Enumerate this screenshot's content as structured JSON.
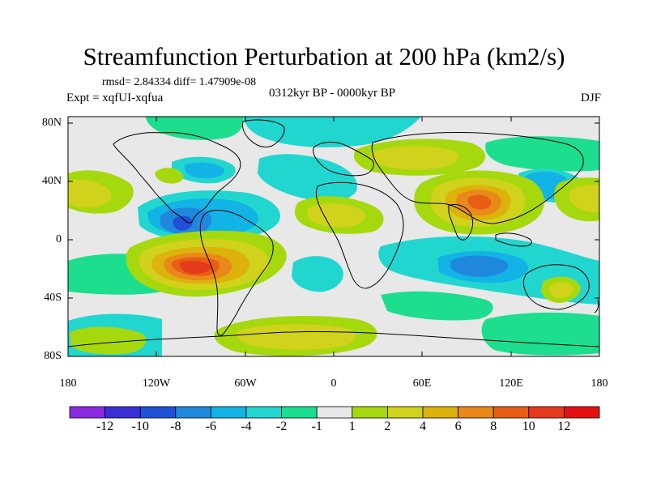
{
  "header": {
    "title": "Streamfunction Perturbation at 200 hPa (km2/s)",
    "stats": "rmsd= 2.84334 diff= 1.47909e-08",
    "experiment": "Expt = xqfUI-xqfua",
    "period": "0312kyr BP - 0000kyr BP",
    "season": "DJF"
  },
  "axes": {
    "lat_labels": [
      "80N",
      "40N",
      "0",
      "40S",
      "80S"
    ],
    "lon_labels": [
      "180",
      "120W",
      "60W",
      "0",
      "60E",
      "120E",
      "180"
    ]
  },
  "colorbar": {
    "labels": [
      "-12",
      "-10",
      "-8",
      "-6",
      "-4",
      "-2",
      "-1",
      "1",
      "2",
      "4",
      "6",
      "8",
      "10",
      "12"
    ],
    "colors": [
      "#8a2be2",
      "#3a2fd6",
      "#1e50d8",
      "#1f88dc",
      "#12b4e6",
      "#22d6d0",
      "#1cde8e",
      "#e8e8e8",
      "#a6d80e",
      "#d0d21c",
      "#ddb20c",
      "#e8891a",
      "#e85e14",
      "#e63a1c",
      "#e41010"
    ]
  },
  "features": [
    {
      "label": "blue-low-east-pacific",
      "color": "#1f88dc"
    },
    {
      "label": "red-high-south-america",
      "color": "#e63a1c"
    },
    {
      "label": "orange-high-south-asia",
      "color": "#e85e14"
    }
  ]
}
